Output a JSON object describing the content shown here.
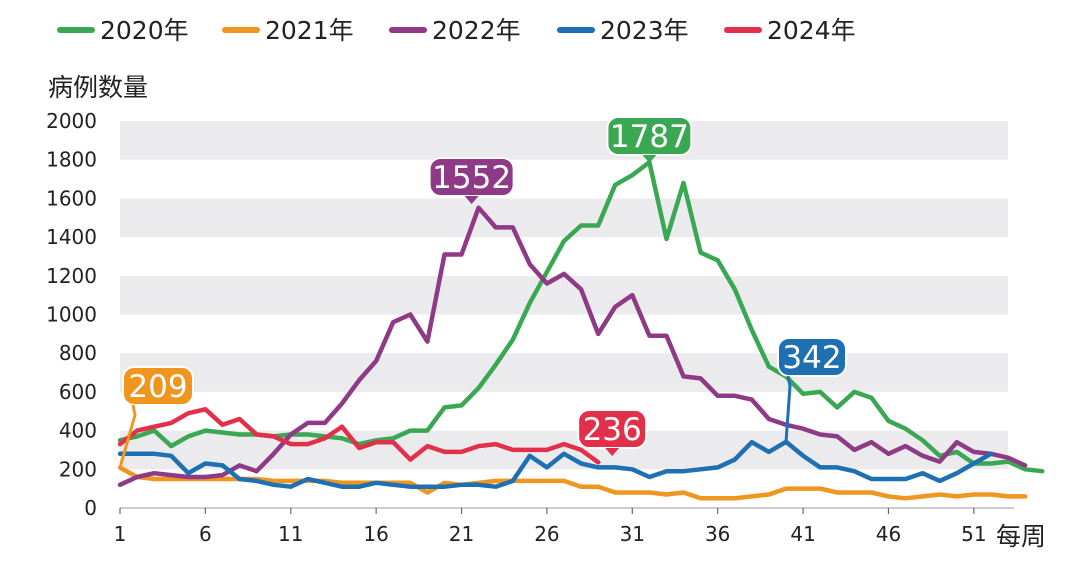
{
  "chart_data": {
    "type": "line",
    "title": "",
    "ylabel": "病例数量",
    "xlabel": "每周",
    "ylim": [
      0,
      2000
    ],
    "xlim": [
      1,
      53
    ],
    "yticks": [
      0,
      200,
      400,
      600,
      800,
      1000,
      1200,
      1400,
      1600,
      1800,
      2000
    ],
    "xticks": [
      1,
      6,
      11,
      16,
      21,
      26,
      31,
      36,
      41,
      46,
      51
    ],
    "grid": "alternating horizontal bands",
    "legend_position": "top",
    "series": [
      {
        "name": "2020年",
        "color": "#3aa853",
        "values": [
          350,
          370,
          400,
          320,
          370,
          400,
          390,
          380,
          380,
          370,
          380,
          380,
          370,
          360,
          330,
          350,
          360,
          400,
          400,
          520,
          530,
          620,
          740,
          870,
          1060,
          1220,
          1380,
          1460,
          1460,
          1670,
          1720,
          1787,
          1390,
          1680,
          1320,
          1280,
          1130,
          920,
          730,
          680,
          590,
          600,
          520,
          600,
          570,
          450,
          410,
          350,
          270,
          290,
          230,
          230,
          240,
          200,
          190
        ],
        "x_start": 1
      },
      {
        "name": "2021年",
        "color": "#f0951e",
        "values": [
          209,
          160,
          150,
          150,
          150,
          150,
          150,
          150,
          150,
          140,
          140,
          140,
          140,
          130,
          130,
          130,
          130,
          130,
          80,
          130,
          120,
          130,
          140,
          140,
          140,
          140,
          140,
          110,
          110,
          80,
          80,
          80,
          70,
          80,
          50,
          50,
          50,
          60,
          70,
          100,
          100,
          100,
          80,
          80,
          80,
          60,
          50,
          60,
          70,
          60,
          70,
          70,
          60,
          60
        ]
      },
      {
        "name": "2022年",
        "color": "#8e3a86",
        "values": [
          120,
          160,
          180,
          170,
          160,
          160,
          170,
          220,
          190,
          280,
          380,
          440,
          440,
          540,
          660,
          760,
          960,
          1000,
          860,
          1310,
          1310,
          1552,
          1450,
          1450,
          1260,
          1160,
          1210,
          1130,
          900,
          1040,
          1100,
          890,
          890,
          680,
          670,
          580,
          580,
          560,
          460,
          430,
          410,
          380,
          370,
          300,
          340,
          280,
          320,
          270,
          240,
          340,
          290,
          280,
          260,
          220
        ]
      },
      {
        "name": "2023年",
        "color": "#1f6fb3",
        "values": [
          280,
          280,
          280,
          270,
          180,
          230,
          220,
          150,
          140,
          120,
          110,
          150,
          130,
          110,
          110,
          130,
          120,
          110,
          110,
          110,
          120,
          120,
          110,
          140,
          270,
          210,
          280,
          230,
          210,
          210,
          200,
          160,
          190,
          190,
          200,
          210,
          250,
          340,
          290,
          342,
          270,
          210,
          210,
          190,
          150,
          150,
          150,
          180,
          140,
          180,
          230,
          280
        ]
      },
      {
        "name": "2024年",
        "color": "#e2304a",
        "values": [
          330,
          400,
          420,
          440,
          490,
          510,
          430,
          460,
          380,
          370,
          330,
          330,
          360,
          420,
          310,
          340,
          340,
          250,
          320,
          290,
          290,
          320,
          330,
          300,
          300,
          300,
          330,
          300,
          236
        ]
      }
    ],
    "callouts": [
      {
        "series": "2020年",
        "label": "1787"
      },
      {
        "series": "2022年",
        "label": "1552"
      },
      {
        "series": "2021年",
        "label": "209"
      },
      {
        "series": "2023年",
        "label": "342"
      },
      {
        "series": "2024年",
        "label": "236"
      }
    ]
  }
}
